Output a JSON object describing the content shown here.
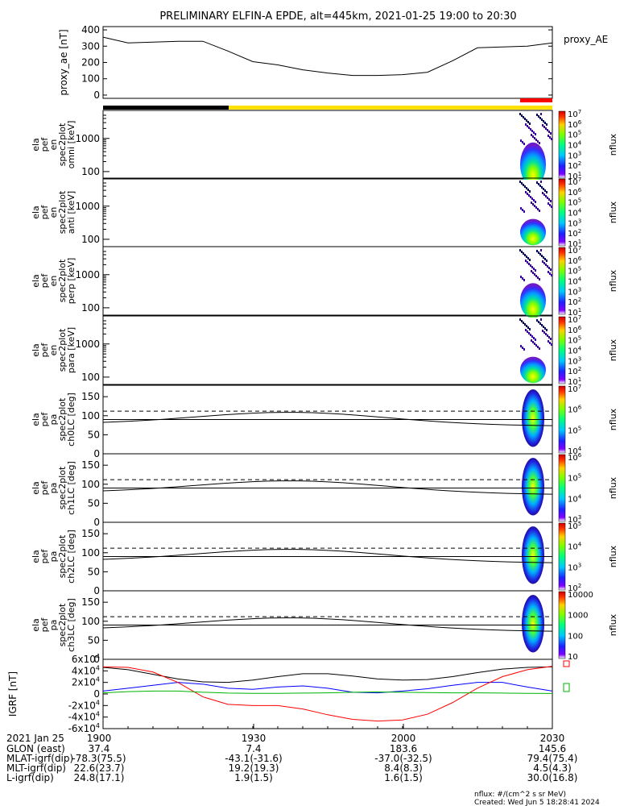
{
  "title": "PRELIMINARY ELFIN-A EPDE, alt=445km, 2021-01-25 19:00 to 20:30",
  "colors": {
    "sunlight_bar_dark": "#000000",
    "sunlight_bar_light": "#ffe100",
    "science_zone_bar": "#ff0000",
    "igrf_x": "#000000",
    "igrf_y": "#0000ff",
    "igrf_z": "#ff0000",
    "igrf_total": "#00b400"
  },
  "chart_data": [
    {
      "type": "line",
      "name": "proxy_AE",
      "ylabel": "proxy_ae [nT]",
      "legend": "proxy_AE",
      "ylim": [
        -20,
        420
      ],
      "yticks": [
        0,
        100,
        200,
        300,
        400
      ],
      "x": [
        "19:00",
        "19:05",
        "19:10",
        "19:15",
        "19:20",
        "19:25",
        "19:30",
        "19:35",
        "19:40",
        "19:45",
        "19:50",
        "19:55",
        "20:00",
        "20:05",
        "20:10",
        "20:15",
        "20:20",
        "20:25",
        "20:30"
      ],
      "values": [
        355,
        320,
        325,
        330,
        330,
        270,
        205,
        185,
        155,
        135,
        120,
        120,
        125,
        140,
        210,
        290,
        295,
        300,
        320
      ]
    },
    {
      "type": "heatmap",
      "ylabel": "ela pef en spec2plot omni [keV]",
      "log_y": true,
      "yticks": [
        100,
        1000
      ],
      "colorbar": {
        "label": "nflux",
        "ticks": [
          "10^1",
          "10^2",
          "10^3",
          "10^4",
          "10^5",
          "10^6",
          "10^7"
        ]
      }
    },
    {
      "type": "heatmap",
      "ylabel": "ela pef en spec2plot anti [keV]",
      "log_y": true,
      "yticks": [
        100,
        1000
      ],
      "colorbar": {
        "label": "nflux",
        "ticks": [
          "10^1",
          "10^2",
          "10^3",
          "10^4",
          "10^5",
          "10^6",
          "10^7"
        ]
      }
    },
    {
      "type": "heatmap",
      "ylabel": "ela pef en spec2plot perp [keV]",
      "log_y": true,
      "yticks": [
        100,
        1000
      ],
      "colorbar": {
        "label": "nflux",
        "ticks": [
          "10^1",
          "10^2",
          "10^3",
          "10^4",
          "10^5",
          "10^6",
          "10^7"
        ]
      }
    },
    {
      "type": "heatmap",
      "ylabel": "ela pef en spec2plot para [keV]",
      "log_y": true,
      "yticks": [
        100,
        1000
      ],
      "colorbar": {
        "label": "nflux",
        "ticks": [
          "10^1",
          "10^2",
          "10^3",
          "10^4",
          "10^5",
          "10^6",
          "10^7"
        ]
      }
    },
    {
      "type": "heatmap",
      "ylabel": "ela pef pa spec2plot ch0LC [deg]",
      "yticks": [
        0,
        50,
        100,
        150
      ],
      "ylim": [
        0,
        180
      ],
      "colorbar": {
        "label": "nflux",
        "ticks": [
          "10^4",
          "10^5",
          "10^6",
          "10^7"
        ]
      }
    },
    {
      "type": "heatmap",
      "ylabel": "ela pef pa spec2plot ch1LC [deg]",
      "yticks": [
        0,
        50,
        100,
        150
      ],
      "ylim": [
        0,
        180
      ],
      "colorbar": {
        "label": "nflux",
        "ticks": [
          "10^3",
          "10^4",
          "10^5",
          "10^6"
        ]
      }
    },
    {
      "type": "heatmap",
      "ylabel": "ela pef pa spec2plot ch2LC [deg]",
      "yticks": [
        0,
        50,
        100,
        150
      ],
      "ylim": [
        0,
        180
      ],
      "colorbar": {
        "label": "nflux",
        "ticks": [
          "10^2",
          "10^3",
          "10^4",
          "10^5"
        ]
      }
    },
    {
      "type": "heatmap",
      "ylabel": "ela pef pa spec2plot ch3LC [deg]",
      "yticks": [
        0,
        50,
        100,
        150
      ],
      "ylim": [
        0,
        180
      ],
      "colorbar": {
        "label": "nflux",
        "ticks": [
          "10",
          "100",
          "1000",
          "10000"
        ]
      }
    },
    {
      "type": "line",
      "ylabel": "IGRF [nT]",
      "ylim": [
        -60000,
        60000
      ],
      "yticks": [
        "-6x10^4",
        "-4x10^4",
        "-2x10^4",
        "0",
        "2x10^4",
        "4x10^4",
        "6x10^4"
      ],
      "x": [
        "19:00",
        "19:05",
        "19:10",
        "19:15",
        "19:20",
        "19:25",
        "19:30",
        "19:35",
        "19:40",
        "19:45",
        "19:50",
        "19:55",
        "20:00",
        "20:05",
        "20:10",
        "20:15",
        "20:20",
        "20:25",
        "20:30"
      ],
      "series": [
        {
          "color": "#000000",
          "values": [
            46000,
            42000,
            34000,
            26000,
            21000,
            20000,
            24000,
            30000,
            35000,
            35000,
            31000,
            26000,
            24000,
            25000,
            30000,
            37000,
            43000,
            46000,
            47000
          ]
        },
        {
          "color": "#0000ff",
          "values": [
            5000,
            10000,
            15000,
            20000,
            17000,
            10000,
            8000,
            12000,
            14000,
            10000,
            3000,
            2000,
            5000,
            9000,
            15000,
            20000,
            20000,
            12000,
            5000
          ]
        },
        {
          "color": "#ff0000",
          "values": [
            47000,
            46000,
            38000,
            20000,
            -5000,
            -18000,
            -20000,
            -20000,
            -26000,
            -36000,
            -44000,
            -47000,
            -45000,
            -35000,
            -15000,
            10000,
            30000,
            42000,
            48000
          ]
        },
        {
          "color": "#00b400",
          "values": [
            2000,
            4000,
            5000,
            5000,
            3000,
            1500,
            1000,
            1000,
            1500,
            2000,
            3000,
            3500,
            3000,
            2500,
            2000,
            2000,
            1500,
            1000,
            800
          ]
        }
      ]
    }
  ],
  "x_axis": {
    "ticks": [
      "1900",
      "1930",
      "2000",
      "2030"
    ],
    "date_label": "2021 Jan 25",
    "rows": [
      {
        "label": "GLON (east)",
        "values": [
          "37.4",
          "7.4",
          "183.6",
          "145.6"
        ]
      },
      {
        "label": "MLAT-igrf(dip)",
        "values": [
          "-78.3(75.5)",
          "-43.1(-31.6)",
          "-37.0(-32.5)",
          "79.4(75.4)"
        ]
      },
      {
        "label": "MLT-igrf(dip)",
        "values": [
          "22.6(23.7)",
          "19.2(19.3)",
          "8.4(8.3)",
          "4.5(4.3)"
        ]
      },
      {
        "label": "L-igrf(dip)",
        "values": [
          "24.8(17.1)",
          "1.9(1.5)",
          "1.6(1.5)",
          "30.0(16.8)"
        ]
      }
    ]
  },
  "footer": {
    "units": "nflux: #/(cm^2 s sr MeV)",
    "created": "Created: Wed Jun  5 18:28:41 2024"
  },
  "labels": {
    "first_row_left": "-78.3(75.5)"
  }
}
